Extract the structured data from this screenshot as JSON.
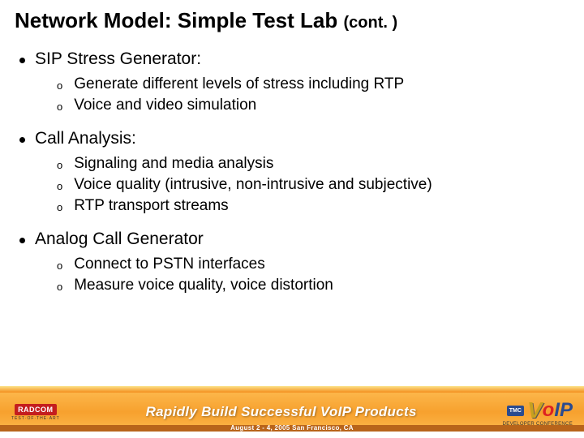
{
  "title": {
    "main": "Network Model: Simple Test Lab",
    "cont": "(cont. )"
  },
  "sections": [
    {
      "heading": "SIP Stress Generator:",
      "items": [
        "Generate different levels of stress including RTP",
        "Voice and video simulation"
      ]
    },
    {
      "heading": "Call Analysis:",
      "items": [
        "Signaling and media analysis",
        "Voice quality (intrusive, non-intrusive and subjective)",
        "RTP transport streams"
      ]
    },
    {
      "heading": "Analog Call Generator",
      "items": [
        "Connect to PSTN interfaces",
        "Measure voice quality, voice distortion"
      ]
    }
  ],
  "footer": {
    "radcom_label": "RADCOM",
    "radcom_sub": "TEST·OF·THE·ART",
    "banner_title": "Rapidly Build Successful VoIP Products",
    "date_location": "August 2 - 4, 2005 San Francisco, CA",
    "tmc": "TMC",
    "voip_v": "V",
    "voip_o": "o",
    "voip_ip": "IP",
    "voip_sub": "DEVELOPER CONFERENCE",
    "colors": {
      "grad_top": "#fce38a",
      "grad_bottom": "#f38d1c",
      "band": "#f7a12e",
      "sub_band": "#b8641a",
      "radcom_bg": "#c41e1e",
      "tmc_bg": "#2b4b8f"
    }
  }
}
